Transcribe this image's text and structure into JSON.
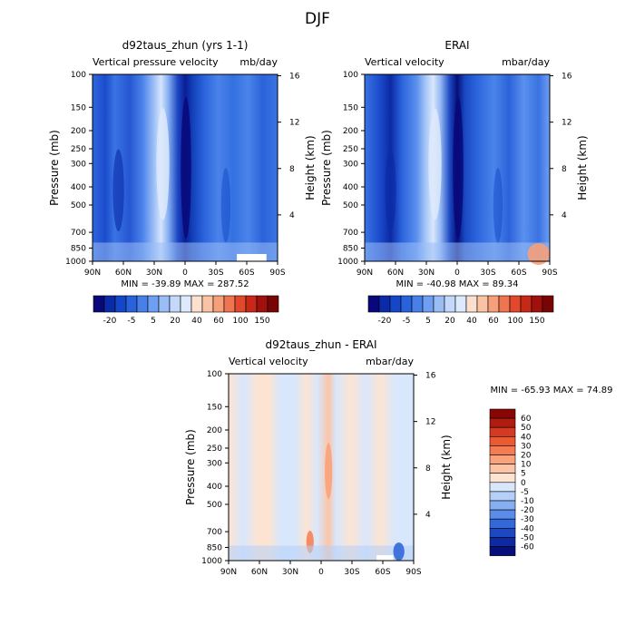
{
  "page_title": "DJF",
  "chart_data": [
    {
      "type": "heatmap",
      "title": "d92taus_zhun (yrs 1-1)",
      "subtitle_left": "Vertical pressure velocity",
      "subtitle_right": "mb/day",
      "ylabel": "Pressure (mb)",
      "ylabel_right": "Height (km)",
      "x_ticks": [
        "90N",
        "60N",
        "30N",
        "0",
        "30S",
        "60S",
        "90S"
      ],
      "y_ticks": [
        "100",
        "150",
        "200",
        "250",
        "300",
        "400",
        "500",
        "700",
        "850",
        "1000"
      ],
      "y_right_ticks": [
        "16",
        "12",
        "8",
        "4"
      ],
      "stats": "MIN = -39.89   MAX = 287.52",
      "colorbar_ticks": [
        "-20",
        "-5",
        "5",
        "20",
        "40",
        "60",
        "100",
        "150"
      ]
    },
    {
      "type": "heatmap",
      "title": "ERAI",
      "subtitle_left": "Vertical velocity",
      "subtitle_right": "mbar/day",
      "ylabel": "Pressure (mb)",
      "ylabel_right": "Height (km)",
      "x_ticks": [
        "90N",
        "60N",
        "30N",
        "0",
        "30S",
        "60S",
        "90S"
      ],
      "y_ticks": [
        "100",
        "150",
        "200",
        "250",
        "300",
        "400",
        "500",
        "700",
        "850",
        "1000"
      ],
      "y_right_ticks": [
        "16",
        "12",
        "8",
        "4"
      ],
      "stats": "MIN = -40.98   MAX =  89.34",
      "colorbar_ticks": [
        "-20",
        "-5",
        "5",
        "20",
        "40",
        "60",
        "100",
        "150"
      ]
    },
    {
      "type": "heatmap",
      "title": "d92taus_zhun - ERAI",
      "subtitle_left": "Vertical velocity",
      "subtitle_right": "mbar/day",
      "ylabel": "Pressure (mb)",
      "ylabel_right": "Height (km)",
      "x_ticks": [
        "90N",
        "60N",
        "30N",
        "0",
        "30S",
        "60S",
        "90S"
      ],
      "y_ticks": [
        "100",
        "150",
        "200",
        "250",
        "300",
        "400",
        "500",
        "700",
        "850",
        "1000"
      ],
      "y_right_ticks": [
        "16",
        "12",
        "8",
        "4"
      ],
      "stats": "MIN = -65.93   MAX =  74.89",
      "colorbar_ticks": [
        "60",
        "50",
        "40",
        "30",
        "20",
        "10",
        "5",
        "0",
        "-5",
        "-10",
        "-20",
        "-30",
        "-40",
        "-50",
        "-60"
      ]
    }
  ],
  "colors": {
    "blues": [
      "#08087a",
      "#0a2aa8",
      "#1447c8",
      "#2a62dc",
      "#4880ea",
      "#6f9ff2",
      "#9abdf6",
      "#c3d8fa",
      "#dde9fc"
    ],
    "reds": [
      "#fbe0cf",
      "#f9c3a4",
      "#f5a07a",
      "#ef7450",
      "#e2482c",
      "#c82818",
      "#a0100c",
      "#780404"
    ],
    "diff_colors": [
      "#8a0606",
      "#b01c10",
      "#d43a22",
      "#ec5a34",
      "#f57c52",
      "#f9a27c",
      "#fbc4a6",
      "#fde4d2",
      "#d8e7fc",
      "#b4cff8",
      "#86aef2",
      "#5b8ce8",
      "#3268d8",
      "#1c48c2",
      "#0e2aa0",
      "#06107a"
    ]
  }
}
